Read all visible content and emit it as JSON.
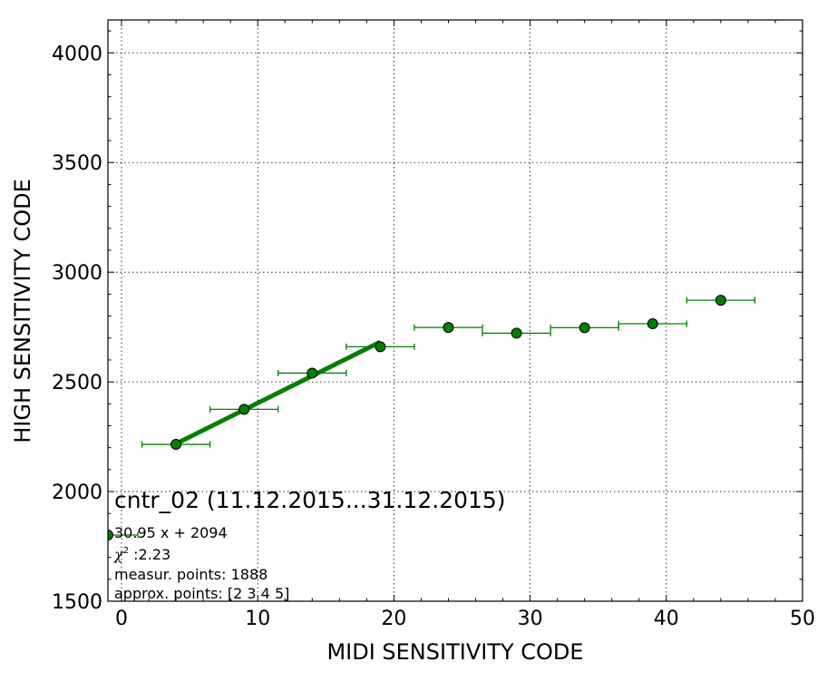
{
  "chart_data": {
    "type": "scatter",
    "xlabel": "MIDI SENSITIVITY CODE",
    "ylabel": "HIGH SENSITIVITY CODE",
    "xlim": [
      -1,
      50
    ],
    "ylim": [
      1500,
      4150
    ],
    "x_ticks": [
      0,
      10,
      20,
      30,
      40,
      50
    ],
    "y_ticks": [
      1500,
      2000,
      2500,
      3000,
      3500,
      4000
    ],
    "x_tick_labels": [
      "0",
      "10",
      "20",
      "30",
      "40",
      "50"
    ],
    "y_tick_labels": [
      "1500",
      "2000",
      "2500",
      "3000",
      "3500",
      "4000"
    ],
    "grid": true,
    "marker_color": "#008000",
    "fit_line_color": "#008000",
    "points": [
      {
        "x": 4,
        "y": 2215,
        "xerr": 2.5
      },
      {
        "x": 9,
        "y": 2375,
        "xerr": 2.5
      },
      {
        "x": 14,
        "y": 2540,
        "xerr": 2.5
      },
      {
        "x": 19,
        "y": 2660,
        "xerr": 2.5
      },
      {
        "x": 24,
        "y": 2748,
        "xerr": 2.5
      },
      {
        "x": 29,
        "y": 2722,
        "xerr": 2.5
      },
      {
        "x": 34,
        "y": 2747,
        "xerr": 2.5
      },
      {
        "x": 39,
        "y": 2765,
        "xerr": 2.5
      },
      {
        "x": 44,
        "y": 2872,
        "xerr": 2.5
      }
    ],
    "fit": {
      "slope": 30.95,
      "intercept": 2094,
      "x_range": [
        4,
        19
      ]
    },
    "legend_marker": true,
    "annotations": {
      "title": "cntr_02 (11.12.2015...31.12.2015)",
      "equation": "30.95 x + 2094",
      "chi_symbol": "χ",
      "chi_sup": "2",
      "chi_value": " :2.23",
      "measur_points": "measur. points: 1888",
      "approx_points": "approx. points: [2 3 4 5]"
    }
  }
}
